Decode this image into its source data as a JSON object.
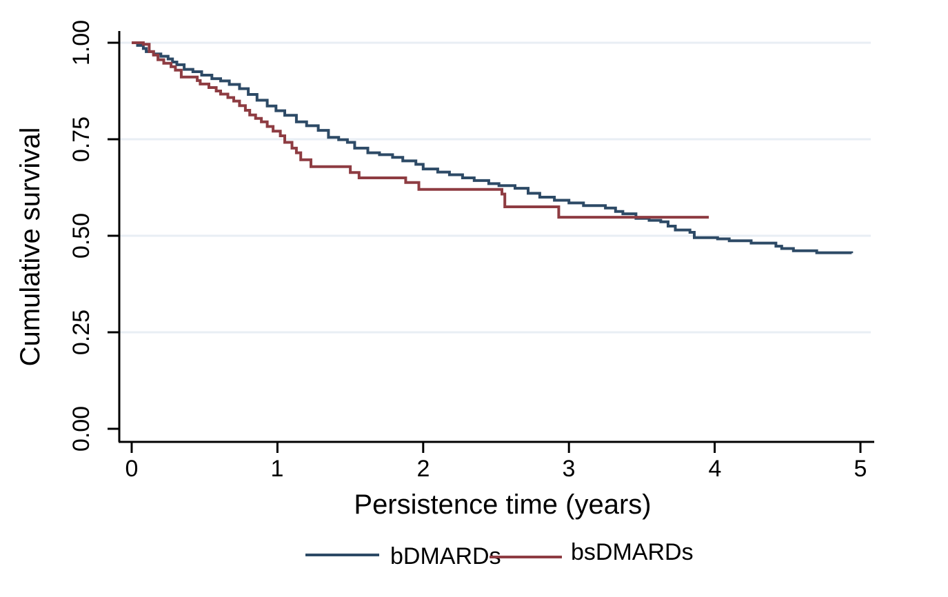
{
  "colors": {
    "background": "#ffffff",
    "axis": "#000000",
    "grid": "#e8eef4",
    "bdmards": "#2d4a66",
    "bsdmards": "#8e3c42"
  },
  "y_axis": {
    "title": "Cumulative survival",
    "ticks": [
      "1.00",
      "0.75",
      "0.50",
      "0.25",
      "0.00"
    ],
    "tick_values": [
      1.0,
      0.75,
      0.5,
      0.25,
      0.0
    ],
    "grid_tick_values": [
      1.0,
      0.75,
      0.5,
      0.25
    ]
  },
  "x_axis": {
    "title": "Persistence time (years)",
    "ticks": [
      "0",
      "1",
      "2",
      "3",
      "4",
      "5"
    ],
    "tick_values": [
      0,
      1,
      2,
      3,
      4,
      5
    ]
  },
  "legend": {
    "items": [
      {
        "label": "bDMARDs",
        "color": "#2d4a66"
      },
      {
        "label": "bsDMARDs",
        "color": "#8e3c42"
      }
    ]
  },
  "chart_data": {
    "type": "line",
    "subtype": "kaplan-meier-step",
    "title": "",
    "xlabel": "Persistence time (years)",
    "ylabel": "Cumulative survival",
    "xlim": [
      0,
      5.2
    ],
    "ylim": [
      0.0,
      1.0
    ],
    "grid": "horizontal, light, at 0.25/0.50/0.75/1.00",
    "legend_position": "bottom center",
    "series": [
      {
        "name": "bDMARDs",
        "color": "#2d4a66",
        "points": [
          [
            0.0,
            1.0
          ],
          [
            0.04,
            0.993
          ],
          [
            0.08,
            0.985
          ],
          [
            0.1,
            0.977
          ],
          [
            0.15,
            0.971
          ],
          [
            0.2,
            0.965
          ],
          [
            0.25,
            0.958
          ],
          [
            0.28,
            0.95
          ],
          [
            0.31,
            0.943
          ],
          [
            0.36,
            0.931
          ],
          [
            0.42,
            0.925
          ],
          [
            0.48,
            0.916
          ],
          [
            0.55,
            0.907
          ],
          [
            0.61,
            0.901
          ],
          [
            0.67,
            0.892
          ],
          [
            0.74,
            0.881
          ],
          [
            0.8,
            0.866
          ],
          [
            0.86,
            0.851
          ],
          [
            0.93,
            0.836
          ],
          [
            0.99,
            0.824
          ],
          [
            1.05,
            0.812
          ],
          [
            1.13,
            0.795
          ],
          [
            1.2,
            0.785
          ],
          [
            1.28,
            0.773
          ],
          [
            1.35,
            0.755
          ],
          [
            1.42,
            0.749
          ],
          [
            1.48,
            0.742
          ],
          [
            1.53,
            0.727
          ],
          [
            1.62,
            0.715
          ],
          [
            1.7,
            0.71
          ],
          [
            1.79,
            0.703
          ],
          [
            1.86,
            0.694
          ],
          [
            1.95,
            0.685
          ],
          [
            2.0,
            0.673
          ],
          [
            2.1,
            0.665
          ],
          [
            2.18,
            0.658
          ],
          [
            2.27,
            0.65
          ],
          [
            2.35,
            0.643
          ],
          [
            2.45,
            0.635
          ],
          [
            2.52,
            0.63
          ],
          [
            2.63,
            0.623
          ],
          [
            2.72,
            0.61
          ],
          [
            2.8,
            0.6
          ],
          [
            2.9,
            0.592
          ],
          [
            3.0,
            0.585
          ],
          [
            3.1,
            0.578
          ],
          [
            3.25,
            0.572
          ],
          [
            3.32,
            0.563
          ],
          [
            3.37,
            0.557
          ],
          [
            3.46,
            0.545
          ],
          [
            3.55,
            0.54
          ],
          [
            3.63,
            0.536
          ],
          [
            3.68,
            0.525
          ],
          [
            3.73,
            0.515
          ],
          [
            3.83,
            0.509
          ],
          [
            3.86,
            0.495
          ],
          [
            4.02,
            0.492
          ],
          [
            4.1,
            0.487
          ],
          [
            4.25,
            0.481
          ],
          [
            4.42,
            0.473
          ],
          [
            4.46,
            0.467
          ],
          [
            4.54,
            0.461
          ],
          [
            4.7,
            0.456
          ],
          [
            4.94,
            0.455
          ]
        ]
      },
      {
        "name": "bsDMARDs",
        "color": "#8e3c42",
        "points": [
          [
            0.0,
            1.0
          ],
          [
            0.08,
            0.996
          ],
          [
            0.12,
            0.977
          ],
          [
            0.15,
            0.968
          ],
          [
            0.18,
            0.956
          ],
          [
            0.22,
            0.947
          ],
          [
            0.27,
            0.938
          ],
          [
            0.3,
            0.929
          ],
          [
            0.34,
            0.911
          ],
          [
            0.45,
            0.902
          ],
          [
            0.47,
            0.893
          ],
          [
            0.53,
            0.884
          ],
          [
            0.58,
            0.875
          ],
          [
            0.61,
            0.867
          ],
          [
            0.66,
            0.858
          ],
          [
            0.7,
            0.849
          ],
          [
            0.74,
            0.837
          ],
          [
            0.78,
            0.825
          ],
          [
            0.81,
            0.813
          ],
          [
            0.85,
            0.804
          ],
          [
            0.89,
            0.795
          ],
          [
            0.93,
            0.783
          ],
          [
            0.97,
            0.771
          ],
          [
            1.02,
            0.759
          ],
          [
            1.05,
            0.742
          ],
          [
            1.1,
            0.727
          ],
          [
            1.13,
            0.715
          ],
          [
            1.16,
            0.697
          ],
          [
            1.23,
            0.679
          ],
          [
            1.5,
            0.664
          ],
          [
            1.56,
            0.65
          ],
          [
            1.88,
            0.638
          ],
          [
            1.97,
            0.62
          ],
          [
            2.54,
            0.608
          ],
          [
            2.56,
            0.575
          ],
          [
            2.93,
            0.548
          ],
          [
            3.96,
            0.548
          ]
        ]
      }
    ]
  }
}
